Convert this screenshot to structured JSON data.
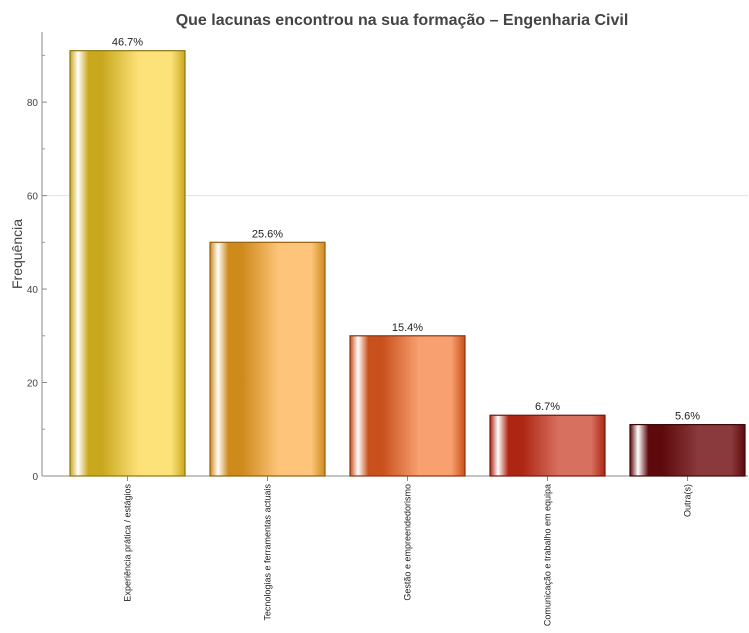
{
  "chart_data": {
    "type": "bar",
    "title": "Que lacunas encontrou na sua formação – Engenharia Civil",
    "xlabel": "",
    "ylabel": "Frequência",
    "ylim": [
      0,
      95
    ],
    "yticks": [
      0,
      20,
      40,
      60,
      80
    ],
    "grid": "horizontal line at 60 only",
    "categories": [
      "Experiência prática / estágios",
      "Tecnologias e ferramentas actuais",
      "Gestão e empreendedorismo",
      "Comunicação e trabalho em equipa",
      "Outra(s)"
    ],
    "values": [
      91,
      50,
      30,
      13,
      11
    ],
    "data_labels": [
      "46.7%",
      "25.6%",
      "15.4%",
      "6.7%",
      "5.6%"
    ],
    "colors": [
      {
        "base": "#c9a81e",
        "light": "#fde27a",
        "dark": "#8f7410"
      },
      {
        "base": "#cf8a1c",
        "light": "#fec57a",
        "dark": "#93600f"
      },
      {
        "base": "#c8501c",
        "light": "#f8a070",
        "dark": "#8c3410"
      },
      {
        "base": "#ad2613",
        "light": "#d87060",
        "dark": "#741809"
      },
      {
        "base": "#5e0a0c",
        "light": "#8a3a3c",
        "dark": "#3d0608"
      }
    ]
  }
}
